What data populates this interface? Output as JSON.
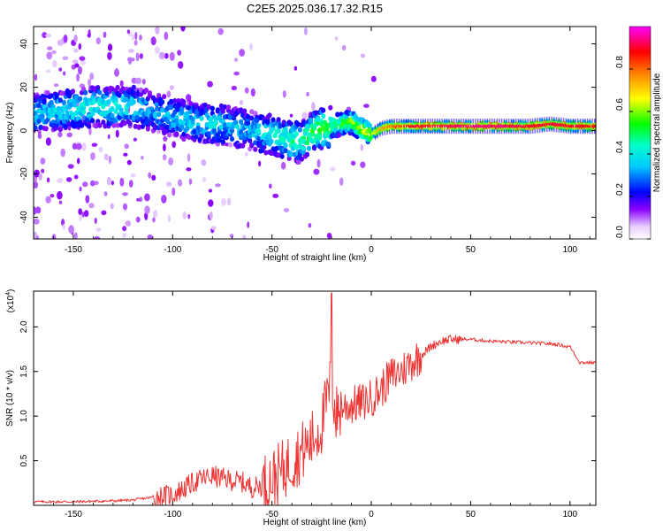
{
  "figure": {
    "title": "C2E5.2025.036.17.32.R15"
  },
  "chart_data": [
    {
      "type": "heatmap",
      "xlabel": "Height of straight line (km)",
      "ylabel": "Frequency (Hz)",
      "xlim": [
        -170,
        113
      ],
      "ylim": [
        -50,
        48
      ],
      "x_ticks": [
        -150,
        -100,
        -50,
        0,
        50,
        100
      ],
      "y_ticks": [
        -40,
        -20,
        0,
        20,
        40
      ],
      "colorbar": {
        "label": "Normalized spectral amplitude",
        "range": [
          0,
          1
        ],
        "ticks": [
          0.0,
          0.2,
          0.4,
          0.6,
          0.8
        ],
        "colormap": [
          "#ffffff",
          "#7a00ff",
          "#0000ff",
          "#00ffff",
          "#00ff00",
          "#ffff00",
          "#ff8000",
          "#ff0000",
          "#ff00ff"
        ]
      },
      "ridge": {
        "description_values_only": true,
        "x": [
          -170,
          -160,
          -150,
          -140,
          -130,
          -120,
          -110,
          -100,
          -90,
          -80,
          -70,
          -60,
          -50,
          -45,
          -40,
          -35,
          -30,
          -25,
          -20,
          -15,
          -10,
          -5,
          0,
          5,
          10,
          20,
          30,
          40,
          50,
          60,
          70,
          80,
          90,
          100,
          113
        ],
        "freq": [
          8,
          9,
          10,
          11,
          11,
          11,
          9,
          6,
          4,
          3,
          2,
          0,
          -2,
          -3,
          -5,
          -5,
          -1,
          1,
          2,
          3,
          4,
          1,
          -2,
          1,
          2,
          2,
          2,
          2,
          2,
          2,
          2,
          2,
          3,
          2,
          2
        ],
        "amplitude": [
          0.35,
          0.35,
          0.4,
          0.4,
          0.4,
          0.38,
          0.33,
          0.33,
          0.36,
          0.36,
          0.33,
          0.33,
          0.4,
          0.42,
          0.45,
          0.45,
          0.5,
          0.55,
          0.5,
          0.5,
          0.58,
          0.6,
          0.65,
          0.75,
          0.8,
          0.88,
          0.92,
          0.93,
          0.94,
          0.94,
          0.93,
          0.9,
          0.9,
          0.9,
          0.88
        ]
      },
      "color_scale_max": 1.0
    },
    {
      "type": "line",
      "xlabel": "Height of straight line (km)",
      "ylabel": "SNR (10 * v/v)",
      "y_multiplier_label": "(x10",
      "y_multiplier_exp": "4",
      "xlim": [
        -170,
        113
      ],
      "ylim": [
        0,
        2.4
      ],
      "x_ticks": [
        -150,
        -100,
        -50,
        0,
        50,
        100
      ],
      "y_ticks": [
        0.5,
        1.0,
        1.5,
        2.0
      ],
      "y_tick_labels": [
        "0.5",
        "1.0",
        "1.5",
        "2.0"
      ],
      "line_color": "#ee3333",
      "series": [
        {
          "x": [
            -170,
            -150,
            -130,
            -120,
            -110,
            -100,
            -95,
            -90,
            -85,
            -80,
            -75,
            -70,
            -65,
            -60,
            -55,
            -50,
            -45,
            -40,
            -35,
            -30,
            -25,
            -22,
            -20,
            -18,
            -15,
            -10,
            -5,
            0,
            5,
            10,
            15,
            20,
            25,
            30,
            35,
            40,
            50,
            60,
            70,
            80,
            90,
            95,
            98,
            100,
            105,
            113
          ],
          "y": [
            0.04,
            0.04,
            0.05,
            0.06,
            0.09,
            0.12,
            0.18,
            0.25,
            0.3,
            0.33,
            0.3,
            0.28,
            0.26,
            0.2,
            0.22,
            0.3,
            0.38,
            0.5,
            0.6,
            0.72,
            0.9,
            1.2,
            1.4,
            1.0,
            1.1,
            1.12,
            1.15,
            1.2,
            1.3,
            1.45,
            1.5,
            1.6,
            1.68,
            1.78,
            1.84,
            1.86,
            1.86,
            1.84,
            1.83,
            1.82,
            1.81,
            1.8,
            1.78,
            1.78,
            1.6,
            1.6
          ]
        }
      ]
    }
  ]
}
